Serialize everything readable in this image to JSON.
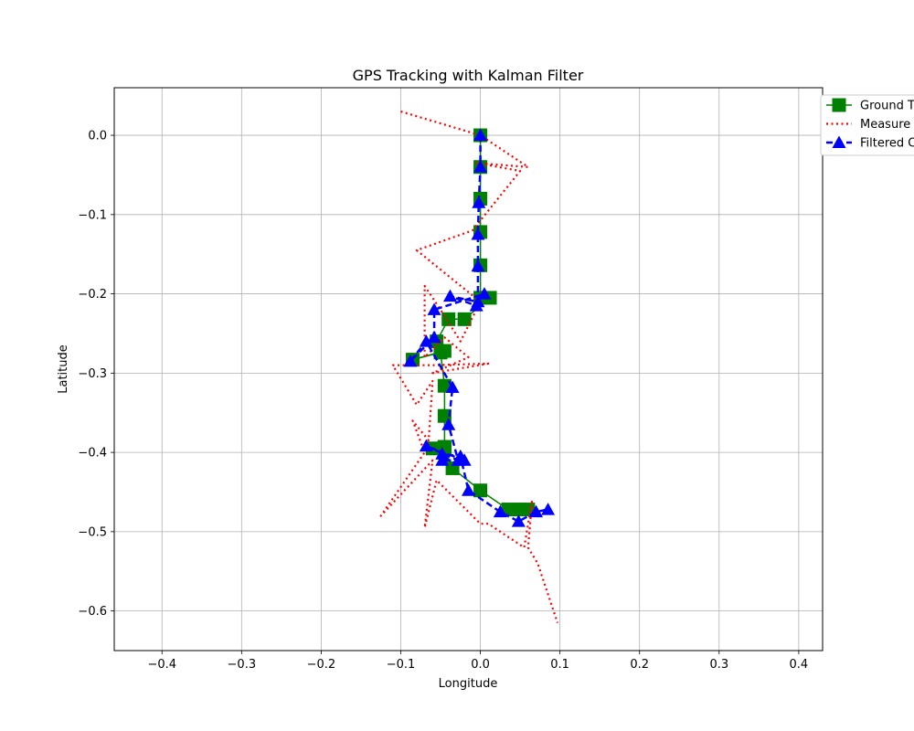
{
  "chart_data": {
    "type": "line",
    "title": "GPS Tracking with Kalman Filter",
    "xlabel": "Longitude",
    "ylabel": "Latitude",
    "xlim": [
      -0.46,
      0.43
    ],
    "ylim": [
      -0.65,
      0.06
    ],
    "xticks": [
      -0.4,
      -0.3,
      -0.2,
      -0.1,
      0.0,
      0.1,
      0.2,
      0.3,
      0.4
    ],
    "xtick_labels": [
      "−0.4",
      "−0.3",
      "−0.2",
      "−0.1",
      "0.0",
      "0.1",
      "0.2",
      "0.3",
      "0.4"
    ],
    "yticks": [
      0.0,
      -0.1,
      -0.2,
      -0.3,
      -0.4,
      -0.5,
      -0.6
    ],
    "ytick_labels": [
      "0.0",
      "−0.1",
      "−0.2",
      "−0.3",
      "−0.4",
      "−0.5",
      "−0.6"
    ],
    "grid": true,
    "legend_position": "upper-right-outside",
    "series": [
      {
        "name": "Ground Truth",
        "legend_text": "Ground T",
        "color": "#008000",
        "line_style": "solid",
        "marker": "square",
        "x": [
          0.0,
          0.0,
          0.0,
          0.0,
          0.0,
          0.0,
          0.012,
          -0.02,
          -0.04,
          -0.055,
          -0.045,
          -0.085,
          -0.05,
          -0.045,
          -0.045,
          -0.045,
          -0.045,
          -0.06,
          -0.045,
          -0.035,
          0.0,
          0.035,
          0.05,
          0.06
        ],
        "y": [
          0.0,
          -0.04,
          -0.08,
          -0.122,
          -0.164,
          -0.205,
          -0.205,
          -0.232,
          -0.232,
          -0.26,
          -0.272,
          -0.283,
          -0.274,
          -0.316,
          -0.354,
          -0.393,
          -0.393,
          -0.395,
          -0.395,
          -0.42,
          -0.448,
          -0.472,
          -0.472,
          -0.472
        ]
      },
      {
        "name": "Measured",
        "legend_text": "Measure",
        "color": "#ff0000",
        "line_style": "dotted",
        "marker": "none",
        "x": [
          -0.1,
          0.0,
          0.06,
          -0.005,
          0.05,
          -0.01,
          -0.08,
          0.0,
          -0.025,
          -0.05,
          -0.07,
          -0.07,
          -0.045,
          -0.015,
          -0.06,
          0.01,
          -0.06,
          -0.11,
          -0.08,
          -0.06,
          -0.065,
          -0.085,
          -0.07,
          -0.125,
          -0.06,
          -0.07,
          -0.055,
          0.0,
          0.01,
          0.055,
          0.065,
          0.06,
          0.072,
          0.097
        ],
        "y": [
          0.03,
          0.0,
          -0.04,
          -0.035,
          -0.045,
          -0.12,
          -0.145,
          -0.21,
          -0.26,
          -0.22,
          -0.19,
          -0.28,
          -0.255,
          -0.28,
          -0.3,
          -0.288,
          -0.29,
          -0.29,
          -0.34,
          -0.31,
          -0.385,
          -0.36,
          -0.4,
          -0.48,
          -0.41,
          -0.495,
          -0.435,
          -0.49,
          -0.49,
          -0.52,
          -0.46,
          -0.52,
          -0.54,
          -0.615
        ]
      },
      {
        "name": "Filtered",
        "legend_text": "Filtered C",
        "color": "#0000ff",
        "line_style": "dashed",
        "marker": "triangle",
        "x": [
          0.0,
          0.0,
          -0.002,
          -0.003,
          -0.003,
          -0.003,
          -0.038,
          -0.005,
          0.005,
          -0.058,
          -0.058,
          -0.088,
          -0.068,
          -0.035,
          -0.04,
          -0.028,
          -0.068,
          -0.02,
          -0.048,
          -0.048,
          -0.025,
          -0.015,
          0.025,
          0.048,
          0.07,
          0.085
        ],
        "y": [
          0.0,
          -0.04,
          -0.085,
          -0.125,
          -0.165,
          -0.21,
          -0.203,
          -0.215,
          -0.2,
          -0.22,
          -0.255,
          -0.285,
          -0.26,
          -0.318,
          -0.365,
          -0.41,
          -0.392,
          -0.41,
          -0.41,
          -0.402,
          -0.405,
          -0.448,
          -0.475,
          -0.487,
          -0.475,
          -0.472
        ]
      }
    ]
  }
}
